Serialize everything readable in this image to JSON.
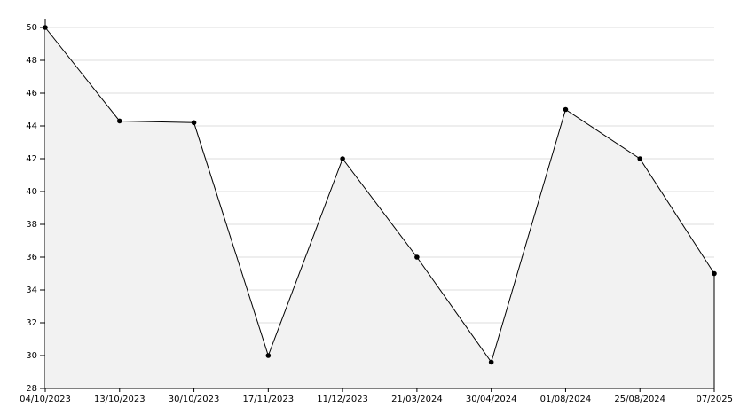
{
  "chart_data": {
    "type": "line",
    "categories": [
      "04/10/2023",
      "13/10/2023",
      "30/10/2023",
      "17/11/2023",
      "11/12/2023",
      "21/03/2024",
      "30/04/2024",
      "01/08/2024",
      "25/08/2024",
      "07/2025"
    ],
    "values": [
      50,
      44.3,
      44.2,
      30,
      42,
      36,
      29.6,
      45,
      42,
      35
    ],
    "color": "#000000",
    "area_color": "#f2f2f2",
    "ylim": [
      28,
      50
    ],
    "yticks": [
      28,
      30,
      32,
      34,
      36,
      38,
      40,
      42,
      44,
      46,
      48,
      50
    ],
    "grid": true
  }
}
